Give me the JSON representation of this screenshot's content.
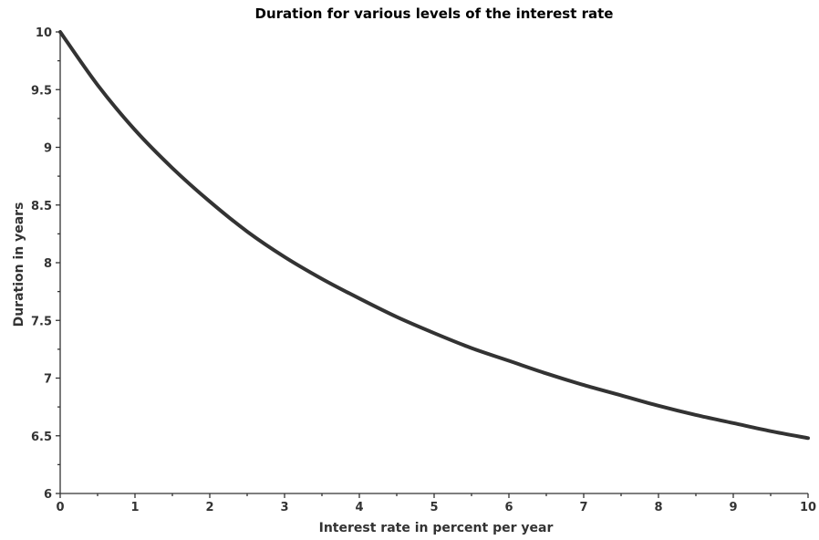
{
  "chart_data": {
    "type": "line",
    "title": "Duration for various levels of the interest rate",
    "xlabel": "Interest rate in percent per year",
    "ylabel": "Duration in years",
    "xlim": [
      0,
      10
    ],
    "ylim": [
      6,
      10
    ],
    "x_ticks": [
      "0",
      "1",
      "2",
      "3",
      "4",
      "5",
      "6",
      "7",
      "8",
      "9",
      "10"
    ],
    "y_ticks": [
      "6",
      "6.5",
      "7",
      "7.5",
      "8",
      "8.5",
      "9",
      "9.5",
      "10"
    ],
    "grid": false,
    "series": [
      {
        "color": "#333333",
        "x": [
          0,
          0.5,
          1,
          1.5,
          2,
          2.5,
          3,
          3.5,
          4,
          4.5,
          5,
          5.5,
          6,
          6.5,
          7,
          7.5,
          8,
          8.5,
          9,
          9.5,
          10
        ],
        "y": [
          10.0,
          9.54,
          9.15,
          8.82,
          8.53,
          8.27,
          8.05,
          7.86,
          7.69,
          7.53,
          7.39,
          7.26,
          7.15,
          7.04,
          6.94,
          6.85,
          6.76,
          6.68,
          6.61,
          6.54,
          6.48
        ]
      }
    ]
  }
}
